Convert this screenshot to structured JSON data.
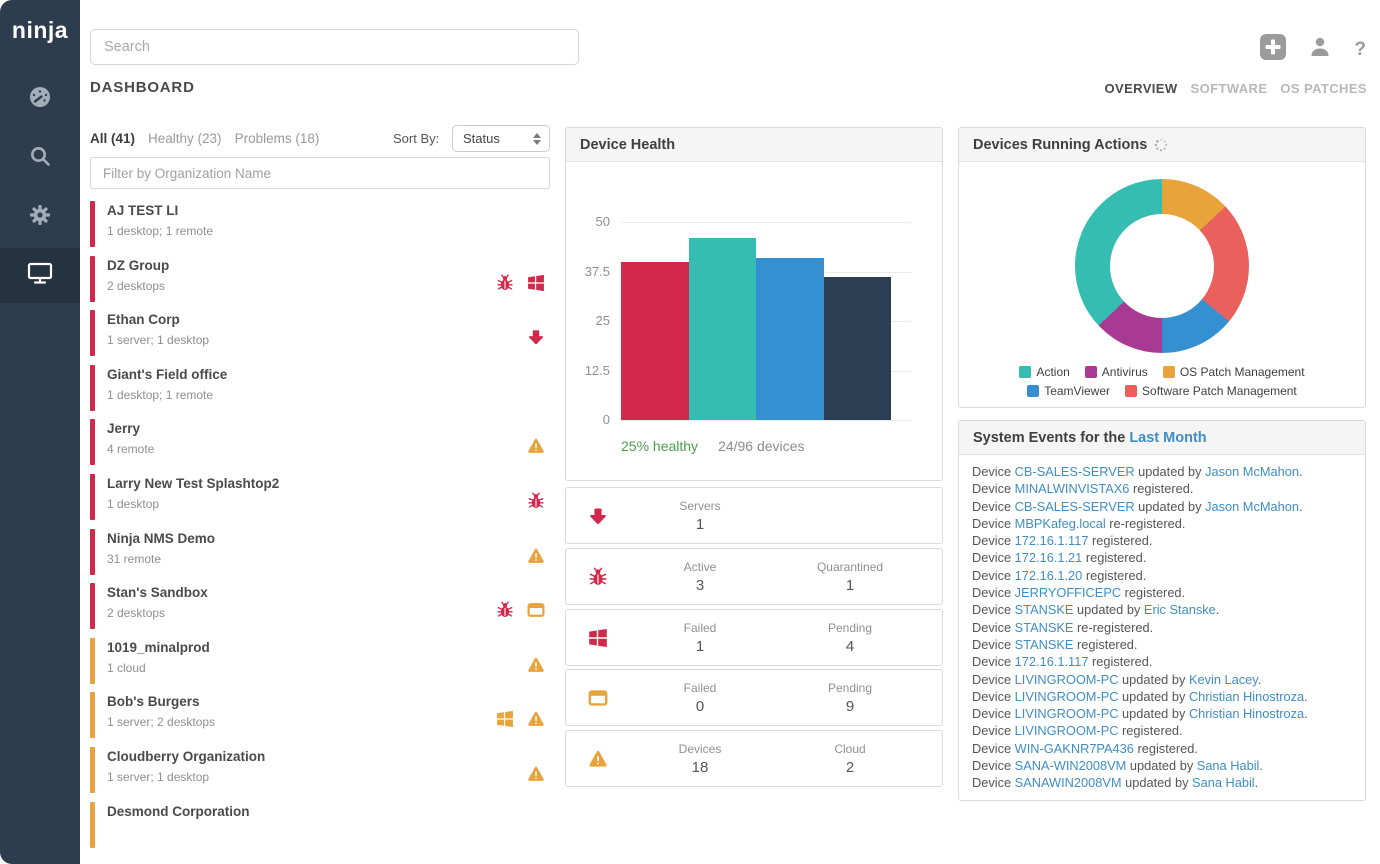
{
  "app": {
    "logo": "ninja"
  },
  "colors": {
    "red": "#d2294b",
    "orange": "#e9a33b",
    "teal": "#35bdb2",
    "blue": "#3590d2",
    "navy": "#2b3e54",
    "purple": "#a83a96",
    "salmon": "#e9605c",
    "green": "#4a9d4c",
    "link": "#3f8dc6",
    "sidebar": "#2e3d4d",
    "sidebar_active": "#25323f",
    "icon_gray": "#9b9b9b",
    "sidebar_icon": "#a3aeb8"
  },
  "sidebar": {
    "items": [
      {
        "name": "dashboard",
        "icon": "gauge-icon",
        "active": false
      },
      {
        "name": "search",
        "icon": "search-icon",
        "active": false
      },
      {
        "name": "settings",
        "icon": "gear-icon",
        "active": false
      },
      {
        "name": "devices",
        "icon": "monitor-icon",
        "active": true
      }
    ]
  },
  "topbar": {
    "search_placeholder": "Search",
    "icons": [
      "add-icon",
      "user-icon",
      "help-icon"
    ],
    "help_glyph": "?"
  },
  "page": {
    "title": "DASHBOARD",
    "tabs": [
      {
        "label": "OVERVIEW",
        "active": true
      },
      {
        "label": "SOFTWARE",
        "active": false
      },
      {
        "label": "OS PATCHES",
        "active": false
      }
    ]
  },
  "org_panel": {
    "filters": [
      {
        "label": "All (41)",
        "active": true
      },
      {
        "label": "Healthy (23)",
        "active": false
      },
      {
        "label": "Problems (18)",
        "active": false
      }
    ],
    "sort_label": "Sort By:",
    "sort_value": "Status",
    "filter_placeholder": "Filter by Organization Name",
    "items": [
      {
        "name": "AJ TEST LI",
        "subtitle": "1 desktop; 1 remote",
        "bar": "red",
        "icons": []
      },
      {
        "name": "DZ Group",
        "subtitle": "2 desktops",
        "bar": "red",
        "icons": [
          {
            "icon": "bug-icon",
            "color": "red"
          },
          {
            "icon": "windows-icon",
            "color": "red"
          }
        ]
      },
      {
        "name": "Ethan Corp",
        "subtitle": "1 server; 1 desktop",
        "bar": "red",
        "icons": [
          {
            "icon": "arrow-down-icon",
            "color": "red"
          }
        ]
      },
      {
        "name": "Giant's Field office",
        "subtitle": "1 desktop; 1 remote",
        "bar": "red",
        "icons": []
      },
      {
        "name": "Jerry",
        "subtitle": "4 remote",
        "bar": "red",
        "icons": [
          {
            "icon": "warning-icon",
            "color": "orange"
          }
        ]
      },
      {
        "name": "Larry New Test Splashtop2",
        "subtitle": "1 desktop",
        "bar": "red",
        "icons": [
          {
            "icon": "bug-icon",
            "color": "red"
          }
        ]
      },
      {
        "name": "Ninja NMS Demo",
        "subtitle": "31 remote",
        "bar": "red",
        "icons": [
          {
            "icon": "warning-icon",
            "color": "orange"
          }
        ]
      },
      {
        "name": "Stan's Sandbox",
        "subtitle": "2 desktops",
        "bar": "red",
        "icons": [
          {
            "icon": "bug-icon",
            "color": "red"
          },
          {
            "icon": "app-window-icon",
            "color": "orange"
          }
        ]
      },
      {
        "name": "1019_minalprod",
        "subtitle": "1 cloud",
        "bar": "orange",
        "icons": [
          {
            "icon": "warning-icon",
            "color": "orange"
          }
        ]
      },
      {
        "name": "Bob's Burgers",
        "subtitle": "1 server; 2 desktops",
        "bar": "orange",
        "icons": [
          {
            "icon": "windows-icon",
            "color": "orange"
          },
          {
            "icon": "warning-icon",
            "color": "orange"
          }
        ]
      },
      {
        "name": "Cloudberry Organization",
        "subtitle": "1 server; 1 desktop",
        "bar": "orange",
        "icons": [
          {
            "icon": "warning-icon",
            "color": "orange"
          }
        ]
      },
      {
        "name": "Desmond Corporation",
        "subtitle": "",
        "bar": "orange",
        "icons": []
      }
    ]
  },
  "device_health": {
    "stats": [
      {
        "icon": "arrow-down-icon",
        "color": "red",
        "cols": [
          {
            "label": "Servers",
            "value": "1"
          }
        ]
      },
      {
        "icon": "bug-icon",
        "color": "red",
        "cols": [
          {
            "label": "Active",
            "value": "3"
          },
          {
            "label": "Quarantined",
            "value": "1"
          }
        ]
      },
      {
        "icon": "windows-icon",
        "color": "red",
        "cols": [
          {
            "label": "Failed",
            "value": "1"
          },
          {
            "label": "Pending",
            "value": "4"
          }
        ]
      },
      {
        "icon": "app-window-icon",
        "color": "orange",
        "cols": [
          {
            "label": "Failed",
            "value": "0"
          },
          {
            "label": "Pending",
            "value": "9"
          }
        ]
      },
      {
        "icon": "warning-icon",
        "color": "orange",
        "cols": [
          {
            "label": "Devices",
            "value": "18"
          },
          {
            "label": "Cloud",
            "value": "2"
          }
        ]
      }
    ]
  },
  "events_panel": {
    "title_prefix": "System Events for the ",
    "title_link": "Last Month",
    "events": [
      [
        {
          "t": "Device ",
          "l": false
        },
        {
          "t": "CB-SALES-SERVER",
          "l": true
        },
        {
          "t": " updated by ",
          "l": false
        },
        {
          "t": "Jason McMahon",
          "l": true
        },
        {
          "t": ".",
          "l": false
        }
      ],
      [
        {
          "t": "Device ",
          "l": false
        },
        {
          "t": "MINALWINVISTAX6",
          "l": true
        },
        {
          "t": " registered.",
          "l": false
        }
      ],
      [
        {
          "t": "Device ",
          "l": false
        },
        {
          "t": "CB-SALES-SERVER",
          "l": true
        },
        {
          "t": " updated by ",
          "l": false
        },
        {
          "t": "Jason McMahon",
          "l": true
        },
        {
          "t": ".",
          "l": false
        }
      ],
      [
        {
          "t": "Device ",
          "l": false
        },
        {
          "t": "MBPKafeg.local",
          "l": true
        },
        {
          "t": " re-registered.",
          "l": false
        }
      ],
      [
        {
          "t": "Device ",
          "l": false
        },
        {
          "t": "172.16.1.117",
          "l": true
        },
        {
          "t": " registered.",
          "l": false
        }
      ],
      [
        {
          "t": "Device ",
          "l": false
        },
        {
          "t": "172.16.1.21",
          "l": true
        },
        {
          "t": " registered.",
          "l": false
        }
      ],
      [
        {
          "t": "Device ",
          "l": false
        },
        {
          "t": "172.16.1.20",
          "l": true
        },
        {
          "t": " registered.",
          "l": false
        }
      ],
      [
        {
          "t": "Device ",
          "l": false
        },
        {
          "t": "JERRYOFFICEPC",
          "l": true
        },
        {
          "t": " registered.",
          "l": false
        }
      ],
      [
        {
          "t": "Device ",
          "l": false
        },
        {
          "t": "STANSKE",
          "l": true
        },
        {
          "t": " updated by ",
          "l": false
        },
        {
          "t": "Eric Stanske",
          "l": true
        },
        {
          "t": ".",
          "l": false
        }
      ],
      [
        {
          "t": "Device ",
          "l": false
        },
        {
          "t": "STANSKE",
          "l": true
        },
        {
          "t": " re-registered.",
          "l": false
        }
      ],
      [
        {
          "t": "Device ",
          "l": false
        },
        {
          "t": "STANSKE",
          "l": true
        },
        {
          "t": " registered.",
          "l": false
        }
      ],
      [
        {
          "t": "Device ",
          "l": false
        },
        {
          "t": "172.16.1.117",
          "l": true
        },
        {
          "t": " registered.",
          "l": false
        }
      ],
      [
        {
          "t": "Device ",
          "l": false
        },
        {
          "t": "LIVINGROOM-PC",
          "l": true
        },
        {
          "t": " updated by ",
          "l": false
        },
        {
          "t": "Kevin Lacey",
          "l": true
        },
        {
          "t": ".",
          "l": false
        }
      ],
      [
        {
          "t": "Device ",
          "l": false
        },
        {
          "t": "LIVINGROOM-PC",
          "l": true
        },
        {
          "t": " updated by ",
          "l": false
        },
        {
          "t": "Christian Hinostroza",
          "l": true
        },
        {
          "t": ".",
          "l": false
        }
      ],
      [
        {
          "t": "Device ",
          "l": false
        },
        {
          "t": "LIVINGROOM-PC",
          "l": true
        },
        {
          "t": " updated by ",
          "l": false
        },
        {
          "t": "Christian Hinostroza",
          "l": true
        },
        {
          "t": ".",
          "l": false
        }
      ],
      [
        {
          "t": "Device ",
          "l": false
        },
        {
          "t": "LIVINGROOM-PC",
          "l": true
        },
        {
          "t": " registered.",
          "l": false
        }
      ],
      [
        {
          "t": "Device ",
          "l": false
        },
        {
          "t": "WIN-GAKNR7PA436",
          "l": true
        },
        {
          "t": " registered.",
          "l": false
        }
      ],
      [
        {
          "t": "Device ",
          "l": false
        },
        {
          "t": "SANA-WIN2008VM",
          "l": true
        },
        {
          "t": " updated by ",
          "l": false
        },
        {
          "t": "Sana Habil",
          "l": true
        },
        {
          "t": ".",
          "l": false
        }
      ],
      [
        {
          "t": "Device ",
          "l": false
        },
        {
          "t": "SANAWIN2008VM",
          "l": true
        },
        {
          "t": " updated by ",
          "l": false
        },
        {
          "t": "Sana Habil",
          "l": true
        },
        {
          "t": ".",
          "l": false
        }
      ]
    ]
  },
  "chart_data": [
    {
      "type": "bar",
      "title": "Device Health",
      "categories": [
        "",
        "",
        "",
        ""
      ],
      "values": [
        40,
        46,
        41,
        36
      ],
      "bar_colors": [
        "#d2294b",
        "#35bdb2",
        "#3590d2",
        "#2b3e54"
      ],
      "ylim": [
        0,
        50
      ],
      "yticks": [
        0,
        12.5,
        25,
        37.5,
        50
      ],
      "grid": true,
      "footer_left": "25% healthy",
      "footer_right": "24/96 devices"
    },
    {
      "type": "pie",
      "variant": "donut",
      "title": "Devices Running Actions",
      "slices_clockwise_from_top": [
        {
          "label": "OS Patch Management",
          "pct": 13,
          "color": "#e9a33b"
        },
        {
          "label": "Software Patch Management",
          "pct": 23,
          "color": "#e9605c"
        },
        {
          "label": "TeamViewer",
          "pct": 14,
          "color": "#3590d2"
        },
        {
          "label": "Antivirus",
          "pct": 13,
          "color": "#a83a96"
        },
        {
          "label": "Action",
          "pct": 37,
          "color": "#35bdb2"
        }
      ],
      "legend": [
        "Action",
        "Antivirus",
        "OS Patch Management",
        "TeamViewer",
        "Software Patch Management"
      ],
      "legend_position": "bottom"
    }
  ]
}
